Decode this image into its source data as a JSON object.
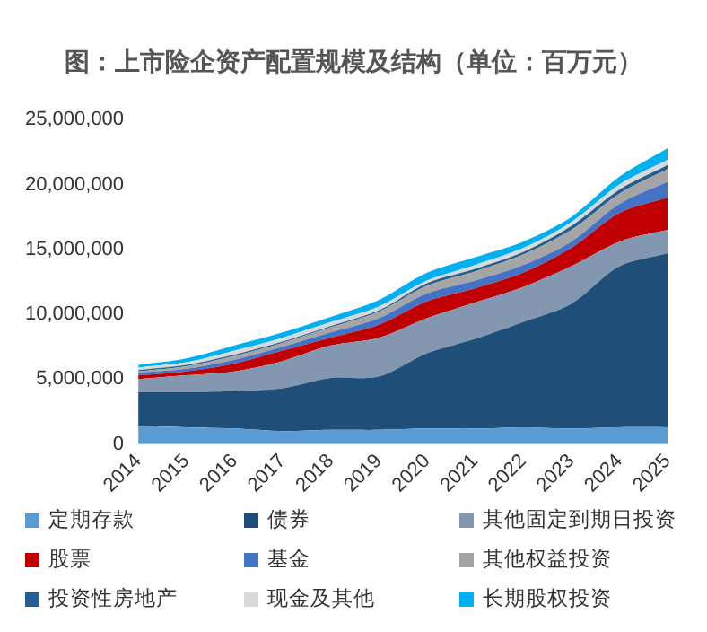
{
  "chart_data": {
    "type": "area",
    "title": "图：上市险企资产配置规模及结构（单位：百万元）",
    "categories": [
      "2014",
      "2015",
      "2016",
      "2017",
      "2018",
      "2019",
      "2020",
      "2021",
      "2022",
      "2023",
      "2024",
      "2025"
    ],
    "stacked": true,
    "legend": "bottom",
    "grid": false,
    "ylim": [
      0,
      25000000
    ],
    "yticks": [
      0,
      {
        "value": 5000000,
        "label": "5,000,000"
      },
      {
        "value": 10000000,
        "label": "10,000,000"
      },
      {
        "value": 15000000,
        "label": "15,000,000"
      },
      {
        "value": 20000000,
        "label": "20,000,000"
      },
      {
        "value": 25000000,
        "label": "25,000,000"
      }
    ],
    "series": [
      {
        "name": "定期存款",
        "color": "#5b9bd5",
        "values": [
          1400000,
          1300000,
          1200000,
          1000000,
          1100000,
          1100000,
          1200000,
          1200000,
          1300000,
          1200000,
          1300000,
          1300000
        ]
      },
      {
        "name": "债券",
        "color": "#1f4e79",
        "values": [
          2600000,
          2700000,
          2900000,
          3300000,
          4000000,
          4100000,
          5800000,
          6900000,
          8100000,
          9600000,
          12400000,
          13400000
        ]
      },
      {
        "name": "其他固定到期日投资",
        "color": "#8497b0",
        "values": [
          1000000,
          1300000,
          1500000,
          2100000,
          2500000,
          3000000,
          2700000,
          2800000,
          2700000,
          2900000,
          1900000,
          1800000
        ]
      },
      {
        "name": "股票",
        "color": "#c00000",
        "values": [
          300000,
          300000,
          600000,
          800000,
          600000,
          1000000,
          1300000,
          1100000,
          1100000,
          1400000,
          2200000,
          2500000
        ]
      },
      {
        "name": "基金",
        "color": "#4472c4",
        "values": [
          200000,
          200000,
          300000,
          300000,
          400000,
          500000,
          600000,
          600000,
          600000,
          500000,
          700000,
          1200000
        ]
      },
      {
        "name": "其他权益投资",
        "color": "#a5a5a5",
        "values": [
          100000,
          200000,
          300000,
          300000,
          400000,
          500000,
          600000,
          700000,
          800000,
          900000,
          800000,
          1000000
        ]
      },
      {
        "name": "投资性房地产",
        "color": "#255e91",
        "values": [
          100000,
          100000,
          100000,
          100000,
          100000,
          100000,
          200000,
          200000,
          200000,
          300000,
          300000,
          300000
        ]
      },
      {
        "name": "现金及其他",
        "color": "#d9d9d9",
        "values": [
          200000,
          200000,
          300000,
          300000,
          300000,
          300000,
          200000,
          300000,
          300000,
          300000,
          400000,
          400000
        ]
      },
      {
        "name": "长期股权投资",
        "color": "#00b0f0",
        "values": [
          200000,
          300000,
          400000,
          400000,
          400000,
          500000,
          600000,
          600000,
          500000,
          400000,
          600000,
          900000
        ]
      }
    ]
  }
}
